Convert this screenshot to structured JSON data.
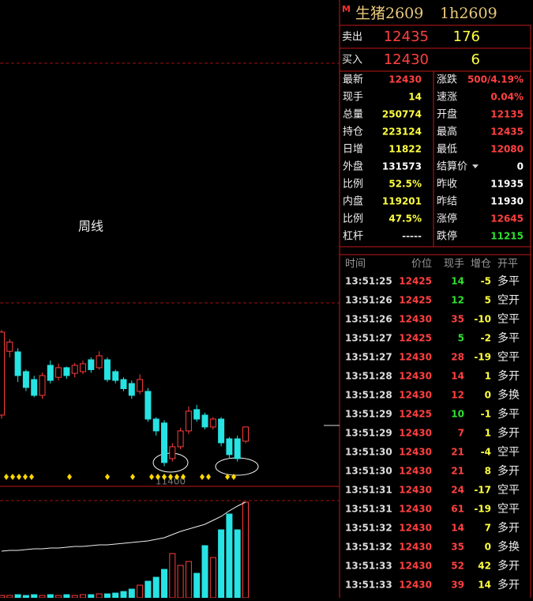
{
  "header": {
    "marker": "M",
    "title": "生猪2609",
    "code": "1h2609"
  },
  "chart": {
    "period_label": "周线",
    "price_label": "11400",
    "ylim": [
      10570,
      16480
    ],
    "volume_lim": [
      0,
      140
    ],
    "up_color": "#ff3c3c",
    "down_color": "#27e3e3",
    "candles": [
      {
        "o": 12817,
        "c": 15526,
        "h": 15600,
        "l": 12700
      },
      {
        "o": 14900,
        "c": 15200,
        "h": 15300,
        "l": 14700
      },
      {
        "o": 14881,
        "c": 14107,
        "h": 15000,
        "l": 13900
      },
      {
        "o": 14236,
        "c": 13720,
        "h": 14300,
        "l": 13600
      },
      {
        "o": 13978,
        "c": 13462,
        "h": 14100,
        "l": 13400
      },
      {
        "o": 13462,
        "c": 14107,
        "h": 14200,
        "l": 13350
      },
      {
        "o": 14442,
        "c": 13950,
        "h": 14600,
        "l": 13850
      },
      {
        "o": 14050,
        "c": 14365,
        "h": 14500,
        "l": 13950
      },
      {
        "o": 14365,
        "c": 14107,
        "h": 14400,
        "l": 14000
      },
      {
        "o": 14180,
        "c": 14442,
        "h": 14520,
        "l": 14050
      },
      {
        "o": 14236,
        "c": 14494,
        "h": 14600,
        "l": 14150
      },
      {
        "o": 14623,
        "c": 14300,
        "h": 14700,
        "l": 14200
      },
      {
        "o": 14365,
        "c": 14752,
        "h": 14900,
        "l": 14300
      },
      {
        "o": 14623,
        "c": 13978,
        "h": 14700,
        "l": 13900
      },
      {
        "o": 14236,
        "c": 13950,
        "h": 14300,
        "l": 13850
      },
      {
        "o": 13978,
        "c": 13680,
        "h": 14050,
        "l": 13600
      },
      {
        "o": 13849,
        "c": 13462,
        "h": 13950,
        "l": 13350
      },
      {
        "o": 13591,
        "c": 13978,
        "h": 14150,
        "l": 13500
      },
      {
        "o": 13591,
        "c": 12688,
        "h": 13700,
        "l": 12600
      },
      {
        "o": 12688,
        "c": 12301,
        "h": 12750,
        "l": 12150
      },
      {
        "o": 12560,
        "c": 11269,
        "h": 12650,
        "l": 11150
      },
      {
        "o": 11398,
        "c": 11785,
        "h": 11900,
        "l": 11300
      },
      {
        "o": 11785,
        "c": 12301,
        "h": 12400,
        "l": 11700
      },
      {
        "o": 12301,
        "c": 12946,
        "h": 13100,
        "l": 12200
      },
      {
        "o": 12998,
        "c": 12688,
        "h": 13150,
        "l": 12600
      },
      {
        "o": 12817,
        "c": 12430,
        "h": 12900,
        "l": 12350
      },
      {
        "o": 12430,
        "c": 12688,
        "h": 12750,
        "l": 12350
      },
      {
        "o": 12688,
        "c": 11914,
        "h": 12750,
        "l": 11800
      },
      {
        "o": 12043,
        "c": 11527,
        "h": 12100,
        "l": 11400
      },
      {
        "o": 12043,
        "c": 11398,
        "h": 12150,
        "l": 11300
      },
      {
        "o": 11966,
        "c": 12430,
        "h": 12435,
        "l": 11900
      }
    ],
    "volumes": [
      3,
      3,
      4,
      3,
      4,
      3,
      4,
      3,
      4,
      3,
      4,
      4,
      5,
      5,
      6,
      8,
      11,
      16,
      21,
      26,
      36,
      56,
      41,
      46,
      31,
      66,
      51,
      86,
      106,
      86,
      121
    ],
    "open_interest": [
      59,
      60,
      60,
      61,
      62,
      62,
      63,
      63,
      64,
      65,
      65,
      66,
      67,
      67,
      68,
      69,
      70,
      71,
      72,
      74,
      76,
      80,
      84,
      87,
      90,
      93,
      98,
      103,
      110,
      116,
      121
    ]
  },
  "quote": {
    "sell": {
      "label": "卖出",
      "price": 12435,
      "volume": 176
    },
    "buy": {
      "label": "买入",
      "price": 12430,
      "volume": 6
    }
  },
  "stats": {
    "left": [
      {
        "label": "最新",
        "value": 12430,
        "color": "#ff4040"
      },
      {
        "label": "现手",
        "value": 14,
        "color": "#ffff40"
      },
      {
        "label": "总量",
        "value": 250774,
        "color": "#ffff40"
      },
      {
        "label": "持仓",
        "value": 223124,
        "color": "#ffff40"
      },
      {
        "label": "日增",
        "value": 11822,
        "color": "#ffff40"
      },
      {
        "label": "外盘",
        "value": 131573,
        "color": "#ffffff"
      },
      {
        "label": "比例",
        "value": "52.5%",
        "color": "#ffff40"
      },
      {
        "label": "内盘",
        "value": 119201,
        "color": "#ffff40"
      },
      {
        "label": "比例",
        "value": "47.5%",
        "color": "#ffff40"
      },
      {
        "label": "杠杆",
        "value": "-----",
        "color": "#dddddd"
      }
    ],
    "right": [
      {
        "label": "涨跌",
        "value": "500/4.19%",
        "color": "#ff4040"
      },
      {
        "label": "速涨",
        "value": "0.04%",
        "color": "#ff4040"
      },
      {
        "label": "开盘",
        "value": 12135,
        "color": "#ff4040"
      },
      {
        "label": "最高",
        "value": 12435,
        "color": "#ff4040"
      },
      {
        "label": "最低",
        "value": 12080,
        "color": "#ff4040"
      },
      {
        "label": "结算价",
        "value": 0,
        "color": "#ffffff"
      },
      {
        "label": "昨收",
        "value": 11935,
        "color": "#ffffff"
      },
      {
        "label": "昨结",
        "value": 11930,
        "color": "#ffffff"
      },
      {
        "label": "涨停",
        "value": 12645,
        "color": "#ff4040"
      },
      {
        "label": "跌停",
        "value": 11215,
        "color": "#30e030"
      }
    ]
  },
  "trades": {
    "columns": [
      "时间",
      "价位",
      "现手",
      "增仓",
      "开平"
    ],
    "rows": [
      [
        "13:51:25",
        12425,
        14,
        -5,
        "多平"
      ],
      [
        "13:51:26",
        12425,
        12,
        5,
        "空开"
      ],
      [
        "13:51:26",
        12430,
        35,
        -10,
        "空平"
      ],
      [
        "13:51:27",
        12425,
        5,
        -2,
        "多平"
      ],
      [
        "13:51:27",
        12430,
        28,
        -19,
        "空平"
      ],
      [
        "13:51:28",
        12430,
        14,
        1,
        "多开"
      ],
      [
        "13:51:28",
        12430,
        12,
        0,
        "多换"
      ],
      [
        "13:51:29",
        12425,
        10,
        -1,
        "多平"
      ],
      [
        "13:51:29",
        12430,
        7,
        1,
        "多开"
      ],
      [
        "13:51:30",
        12430,
        21,
        -4,
        "空平"
      ],
      [
        "13:51:30",
        12430,
        21,
        8,
        "多开"
      ],
      [
        "13:51:31",
        12430,
        24,
        -17,
        "空平"
      ],
      [
        "13:51:31",
        12430,
        61,
        -19,
        "空平"
      ],
      [
        "13:51:32",
        12430,
        14,
        7,
        "多开"
      ],
      [
        "13:51:32",
        12430,
        35,
        0,
        "多换"
      ],
      [
        "13:51:33",
        12430,
        52,
        42,
        "多开"
      ],
      [
        "13:51:33",
        12430,
        39,
        14,
        "多开"
      ]
    ]
  }
}
